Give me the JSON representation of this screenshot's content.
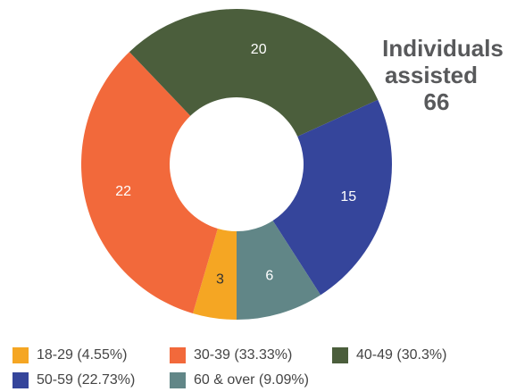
{
  "chart_data": {
    "type": "donut",
    "categories": [
      "18-29 (4.55%)",
      "30-39 (33.33%)",
      "40-49 (30.3%)",
      "50-59 (22.73%)",
      "60 & over (9.09%)"
    ],
    "values": [
      3,
      22,
      20,
      15,
      6
    ],
    "colors": [
      "#f5a623",
      "#f2693b",
      "#4b5e3c",
      "#35459b",
      "#618687"
    ],
    "annotation": {
      "text": [
        "Individuals",
        "assisted"
      ],
      "total": 66,
      "total_color": "#c8202f"
    }
  }
}
